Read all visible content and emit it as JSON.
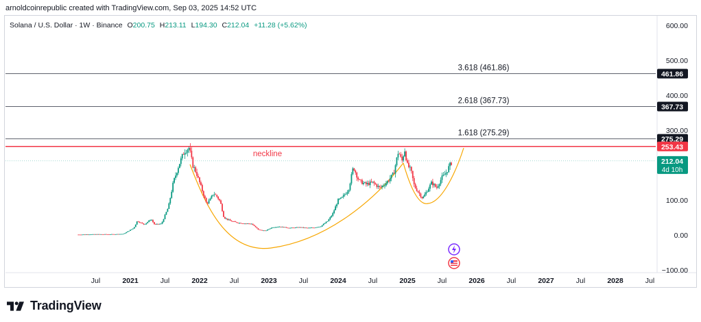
{
  "header": {
    "attribution": "arnoldcoinrepublic created with TradingView.com, Sep 03, 2025 14:52 UTC"
  },
  "legend": {
    "symbol": "Solana / U.S. Dollar · 1W · Binance",
    "open_key": "O",
    "open": "200.75",
    "high_key": "H",
    "high": "213.11",
    "low_key": "L",
    "low": "194.30",
    "close_key": "C",
    "close": "212.04",
    "change": "+11.28 (+5.62%)"
  },
  "footer": {
    "brand": "TradingView"
  },
  "chart_data": {
    "type": "candlestick",
    "ylim": [
      -100,
      620
    ],
    "y_ticks": [
      "600.00",
      "500.00",
      "400.00",
      "300.00",
      "100.00",
      "0.00",
      "−100.00"
    ],
    "y_tick_values": [
      600,
      500,
      400,
      300,
      100,
      0,
      -100
    ],
    "x_ticks": [
      "Jul",
      "2021",
      "Jul",
      "2022",
      "Jul",
      "2023",
      "Jul",
      "2024",
      "Jul",
      "2025",
      "Jul",
      "2026",
      "Jul",
      "2027",
      "Jul",
      "2028",
      "Jul"
    ],
    "x_tick_values": [
      2020.5,
      2021,
      2021.5,
      2022,
      2022.5,
      2023,
      2023.5,
      2024,
      2024.5,
      2025,
      2025.5,
      2026,
      2026.5,
      2027,
      2027.5,
      2028,
      2028.5
    ],
    "bold_ticks": [
      "2021",
      "2022",
      "2023",
      "2024",
      "2025",
      "2026",
      "2027",
      "2028"
    ],
    "fib_levels": [
      {
        "label": "3.618 (461.86)",
        "value": 461.86,
        "tag": "461.86"
      },
      {
        "label": "2.618 (367.73)",
        "value": 367.73,
        "tag": "367.73"
      },
      {
        "label": "1.618 (275.29)",
        "value": 275.29,
        "tag": "275.29"
      }
    ],
    "neckline": {
      "label": "neckline",
      "value": 253.43,
      "tag": "253.43"
    },
    "last_price": {
      "value": 212.04,
      "tag": "212.04",
      "countdown": "4d 10h"
    },
    "price_path": [
      [
        2020.25,
        1
      ],
      [
        2020.5,
        2
      ],
      [
        2020.75,
        2
      ],
      [
        2020.9,
        3
      ],
      [
        2021.05,
        20
      ],
      [
        2021.1,
        40
      ],
      [
        2021.2,
        30
      ],
      [
        2021.3,
        45
      ],
      [
        2021.35,
        30
      ],
      [
        2021.45,
        32
      ],
      [
        2021.55,
        80
      ],
      [
        2021.62,
        150
      ],
      [
        2021.7,
        200
      ],
      [
        2021.78,
        240
      ],
      [
        2021.85,
        250
      ],
      [
        2021.9,
        200
      ],
      [
        2021.95,
        180
      ],
      [
        2022.0,
        150
      ],
      [
        2022.1,
        90
      ],
      [
        2022.15,
        100
      ],
      [
        2022.2,
        120
      ],
      [
        2022.25,
        110
      ],
      [
        2022.3,
        95
      ],
      [
        2022.35,
        50
      ],
      [
        2022.45,
        40
      ],
      [
        2022.55,
        35
      ],
      [
        2022.65,
        33
      ],
      [
        2022.75,
        32
      ],
      [
        2022.85,
        15
      ],
      [
        2022.95,
        12
      ],
      [
        2023.05,
        22
      ],
      [
        2023.15,
        24
      ],
      [
        2023.3,
        20
      ],
      [
        2023.45,
        22
      ],
      [
        2023.55,
        20
      ],
      [
        2023.65,
        21
      ],
      [
        2023.75,
        25
      ],
      [
        2023.85,
        40
      ],
      [
        2023.92,
        60
      ],
      [
        2024.0,
        100
      ],
      [
        2024.05,
        105
      ],
      [
        2024.15,
        130
      ],
      [
        2024.22,
        195
      ],
      [
        2024.3,
        155
      ],
      [
        2024.4,
        145
      ],
      [
        2024.5,
        150
      ],
      [
        2024.6,
        135
      ],
      [
        2024.7,
        150
      ],
      [
        2024.8,
        175
      ],
      [
        2024.87,
        240
      ],
      [
        2024.92,
        210
      ],
      [
        2024.96,
        245
      ],
      [
        2025.0,
        200
      ],
      [
        2025.05,
        185
      ],
      [
        2025.1,
        140
      ],
      [
        2025.15,
        125
      ],
      [
        2025.22,
        105
      ],
      [
        2025.28,
        125
      ],
      [
        2025.35,
        150
      ],
      [
        2025.42,
        135
      ],
      [
        2025.5,
        165
      ],
      [
        2025.55,
        175
      ],
      [
        2025.6,
        195
      ],
      [
        2025.65,
        212
      ]
    ]
  }
}
